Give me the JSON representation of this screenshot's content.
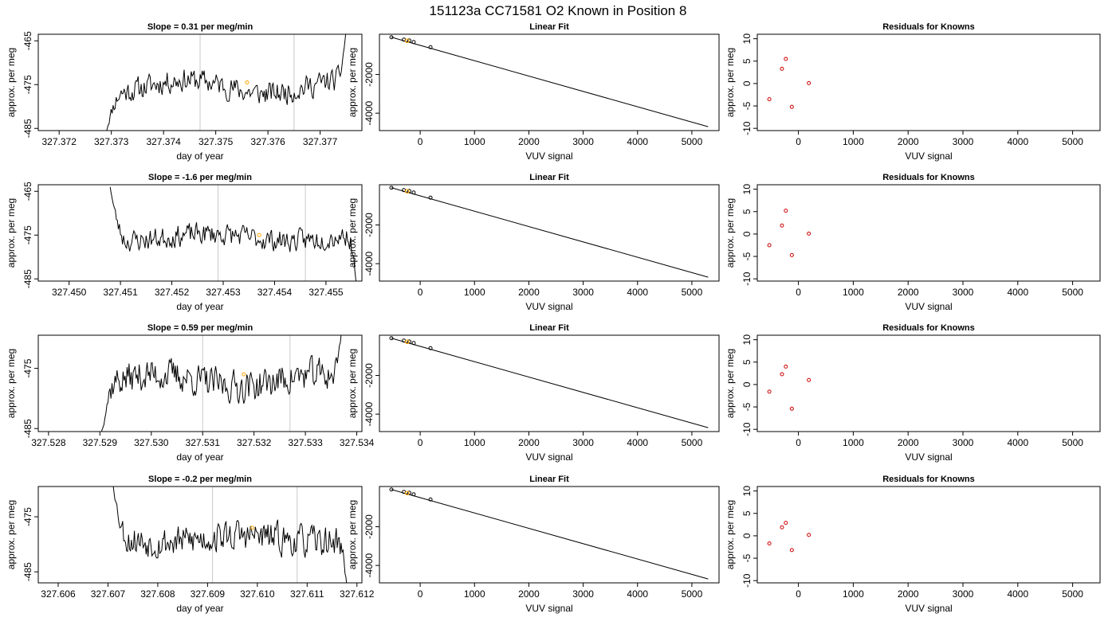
{
  "title": "151123a     CC71581    O2 Known in Position  8",
  "colors": {
    "line": "#000000",
    "vline": "#c8c8c8",
    "highlight": "#ffa500",
    "resid": "#cc0000"
  },
  "chart_data": [
    {
      "type": "line",
      "title": "Slope =  0.31  per meg/min",
      "xlabel": "day of year",
      "ylabel": "approx. per meg",
      "xlim": [
        327.3716,
        327.3778
      ],
      "ylim": [
        -485.5,
        -463.5
      ],
      "xticks": [
        "327.372",
        "327.373",
        "327.374",
        "327.375",
        "327.376",
        "327.377"
      ],
      "yticks": [
        "-465",
        "-475",
        "-485"
      ],
      "vlines": [
        327.3747,
        327.3765
      ],
      "highlight": [
        327.3756,
        -474.5
      ],
      "trace_start": 327.3729,
      "trace_end": 327.3775,
      "level": -475.5,
      "noise": 1.5,
      "start_y": -486,
      "end_y": -462,
      "wave": 1.6,
      "seed": 11
    },
    {
      "type": "line",
      "title": "Slope =  -1.6  per meg/min",
      "xlabel": "day of year",
      "ylabel": "approx. per meg",
      "xlim": [
        327.4494,
        327.4557
      ],
      "ylim": [
        -485.5,
        -463.5
      ],
      "xticks": [
        "327.450",
        "327.451",
        "327.452",
        "327.453",
        "327.454",
        "327.455"
      ],
      "yticks": [
        "-465",
        "-475",
        "-485"
      ],
      "vlines": [
        327.4529,
        327.4546
      ],
      "highlight": [
        327.4537,
        -475
      ],
      "trace_start": 327.4508,
      "trace_end": 327.4556,
      "level": -475.5,
      "noise": 1.4,
      "start_y": -464,
      "end_y": -487,
      "wave": 0.8,
      "seed": 23
    },
    {
      "type": "line",
      "title": "Slope =  0.59  per meg/min",
      "xlabel": "day of year",
      "ylabel": "approx. per meg",
      "xlim": [
        327.5278,
        327.5341
      ],
      "ylim": [
        -485.5,
        -469.5
      ],
      "xticks": [
        "327.528",
        "327.529",
        "327.530",
        "327.531",
        "327.532",
        "327.533",
        "327.534"
      ],
      "yticks": [
        "-475",
        "-485"
      ],
      "vlines": [
        327.531,
        327.5327
      ],
      "highlight": [
        327.5318,
        -476
      ],
      "trace_start": 327.529,
      "trace_end": 327.5337,
      "level": -477,
      "noise": 1.5,
      "start_y": -487,
      "end_y": -469,
      "wave": 1.0,
      "seed": 37
    },
    {
      "type": "line",
      "title": "Slope =  -0.2  per meg/min",
      "xlabel": "day of year",
      "ylabel": "approx. per meg",
      "xlim": [
        327.6056,
        327.6121
      ],
      "ylim": [
        -487,
        -469.5
      ],
      "xticks": [
        "327.606",
        "327.607",
        "327.608",
        "327.609",
        "327.610",
        "327.611",
        "327.612"
      ],
      "yticks": [
        "-475",
        "-485"
      ],
      "vlines": [
        327.6091,
        327.6108
      ],
      "highlight": [
        327.6099,
        -477
      ],
      "trace_start": 327.6071,
      "trace_end": 327.6118,
      "level": -479,
      "noise": 1.6,
      "start_y": -469,
      "end_y": -488,
      "wave": 0.6,
      "seed": 53
    },
    {
      "type": "scatter",
      "title": "Linear Fit",
      "xlabel": "VUV signal",
      "ylabel": "approx. per meg",
      "xlim": [
        -750,
        5500
      ],
      "ylim": [
        -4900,
        80
      ],
      "xticks": [
        0,
        1000,
        2000,
        3000,
        4000,
        5000
      ],
      "yticks": [
        -2000,
        -4000
      ],
      "points": [
        [
          -530,
          -75
        ],
        [
          -300,
          -200
        ],
        [
          -200,
          -245
        ],
        [
          -120,
          -320
        ],
        [
          190,
          -590
        ]
      ],
      "highlight": [
        -240,
        -260
      ],
      "fit_line": [
        [
          -530,
          -75
        ],
        [
          5300,
          -4700
        ]
      ]
    },
    {
      "type": "scatter",
      "title": "Linear Fit",
      "xlabel": "VUV signal",
      "ylabel": "approx. per meg",
      "xlim": [
        -750,
        5500
      ],
      "ylim": [
        -4900,
        80
      ],
      "xticks": [
        0,
        1000,
        2000,
        3000,
        4000,
        5000
      ],
      "yticks": [
        -2000,
        -4000
      ],
      "points": [
        [
          -530,
          -75
        ],
        [
          -300,
          -200
        ],
        [
          -200,
          -245
        ],
        [
          -120,
          -320
        ],
        [
          190,
          -590
        ]
      ],
      "highlight": [
        -240,
        -260
      ],
      "fit_line": [
        [
          -530,
          -75
        ],
        [
          5300,
          -4700
        ]
      ]
    },
    {
      "type": "scatter",
      "title": "Linear Fit",
      "xlabel": "VUV signal",
      "ylabel": "approx. per meg",
      "xlim": [
        -750,
        5500
      ],
      "ylim": [
        -4900,
        80
      ],
      "xticks": [
        0,
        1000,
        2000,
        3000,
        4000,
        5000
      ],
      "yticks": [
        -2000,
        -4000
      ],
      "points": [
        [
          -530,
          -75
        ],
        [
          -300,
          -200
        ],
        [
          -200,
          -245
        ],
        [
          -120,
          -320
        ],
        [
          190,
          -590
        ]
      ],
      "highlight": [
        -240,
        -260
      ],
      "fit_line": [
        [
          -530,
          -75
        ],
        [
          5300,
          -4700
        ]
      ]
    },
    {
      "type": "scatter",
      "title": "Linear Fit",
      "xlabel": "VUV signal",
      "ylabel": "approx. per meg",
      "xlim": [
        -750,
        5500
      ],
      "ylim": [
        -4900,
        80
      ],
      "xticks": [
        0,
        1000,
        2000,
        3000,
        4000,
        5000
      ],
      "yticks": [
        -2000,
        -4000
      ],
      "points": [
        [
          -530,
          -75
        ],
        [
          -300,
          -200
        ],
        [
          -200,
          -245
        ],
        [
          -120,
          -320
        ],
        [
          190,
          -590
        ]
      ],
      "highlight": [
        -240,
        -260
      ],
      "fit_line": [
        [
          -530,
          -75
        ],
        [
          5300,
          -4700
        ]
      ]
    },
    {
      "type": "scatter",
      "title": "Residuals for Knowns",
      "xlabel": "VUV signal",
      "ylabel": "approx. per meg",
      "xlim": [
        -750,
        5500
      ],
      "ylim": [
        -10.5,
        11
      ],
      "xticks": [
        0,
        1000,
        2000,
        3000,
        4000,
        5000
      ],
      "yticks": [
        10,
        5,
        0,
        -5,
        -10
      ],
      "points": [
        [
          -530,
          -3.5
        ],
        [
          -300,
          3.3
        ],
        [
          -230,
          5.5
        ],
        [
          -120,
          -5.2
        ],
        [
          190,
          0.1
        ]
      ]
    },
    {
      "type": "scatter",
      "title": "Residuals for Knowns",
      "xlabel": "VUV signal",
      "ylabel": "approx. per meg",
      "xlim": [
        -750,
        5500
      ],
      "ylim": [
        -10.5,
        11
      ],
      "xticks": [
        0,
        1000,
        2000,
        3000,
        4000,
        5000
      ],
      "yticks": [
        10,
        5,
        0,
        -5,
        -10
      ],
      "points": [
        [
          -530,
          -2.5
        ],
        [
          -300,
          1.9
        ],
        [
          -230,
          5.2
        ],
        [
          -120,
          -4.7
        ],
        [
          190,
          0.1
        ]
      ]
    },
    {
      "type": "scatter",
      "title": "Residuals for Knowns",
      "xlabel": "VUV signal",
      "ylabel": "approx. per meg",
      "xlim": [
        -750,
        5500
      ],
      "ylim": [
        -10.5,
        11
      ],
      "xticks": [
        0,
        1000,
        2000,
        3000,
        4000,
        5000
      ],
      "yticks": [
        10,
        5,
        0,
        -5,
        -10
      ],
      "points": [
        [
          -530,
          -1.6
        ],
        [
          -300,
          2.3
        ],
        [
          -230,
          4.0
        ],
        [
          -120,
          -5.4
        ],
        [
          190,
          1.0
        ]
      ]
    },
    {
      "type": "scatter",
      "title": "Residuals for Knowns",
      "xlabel": "VUV signal",
      "ylabel": "approx. per meg",
      "xlim": [
        -750,
        5500
      ],
      "ylim": [
        -10.5,
        11
      ],
      "xticks": [
        0,
        1000,
        2000,
        3000,
        4000,
        5000
      ],
      "yticks": [
        10,
        5,
        0,
        -5,
        -10
      ],
      "points": [
        [
          -530,
          -1.7
        ],
        [
          -300,
          1.9
        ],
        [
          -230,
          2.9
        ],
        [
          -120,
          -3.2
        ],
        [
          190,
          0.2
        ]
      ]
    }
  ]
}
